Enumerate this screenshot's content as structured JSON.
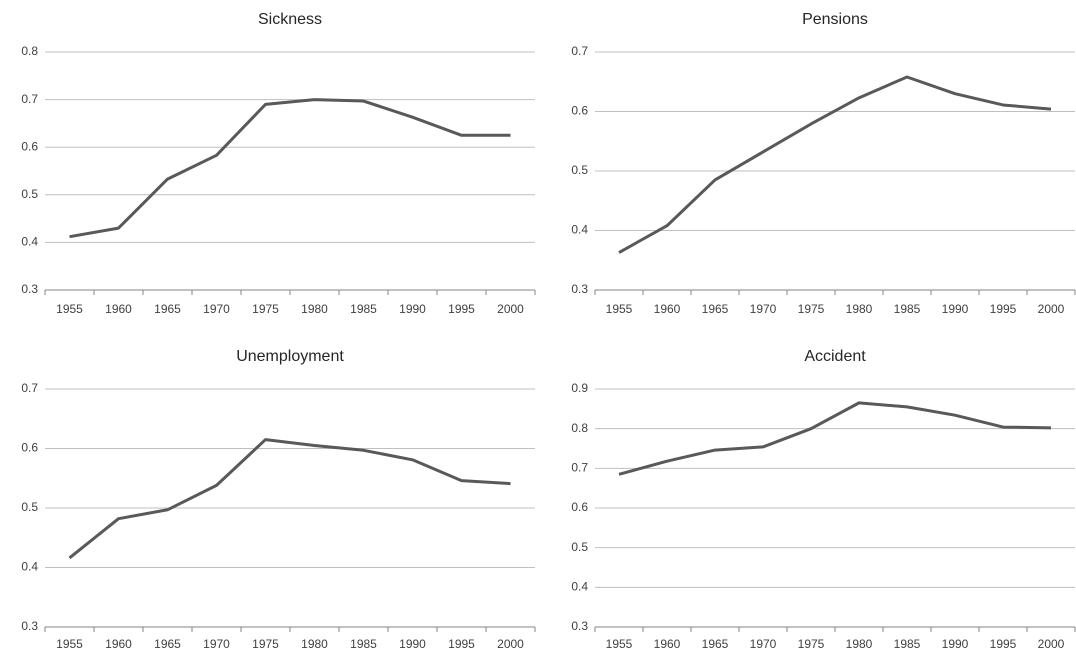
{
  "chart_data": [
    {
      "type": "line",
      "title": "Sickness",
      "categories": [
        "1955",
        "1960",
        "1965",
        "1970",
        "1975",
        "1980",
        "1985",
        "1990",
        "1995",
        "2000"
      ],
      "values": [
        0.412,
        0.43,
        0.533,
        0.583,
        0.69,
        0.7,
        0.697,
        0.663,
        0.625,
        0.625
      ],
      "color": "#595959",
      "ylim": [
        0.3,
        0.8
      ],
      "yticks": [
        0.3,
        0.4,
        0.5,
        0.6,
        0.7,
        0.8
      ],
      "grid": true
    },
    {
      "type": "line",
      "title": "Pensions",
      "categories": [
        "1955",
        "1960",
        "1965",
        "1970",
        "1975",
        "1980",
        "1985",
        "1990",
        "1995",
        "2000"
      ],
      "values": [
        0.363,
        0.408,
        0.485,
        0.532,
        0.579,
        0.623,
        0.658,
        0.63,
        0.611,
        0.604
      ],
      "color": "#595959",
      "ylim": [
        0.3,
        0.7
      ],
      "yticks": [
        0.3,
        0.4,
        0.5,
        0.6,
        0.7
      ],
      "grid": true
    },
    {
      "type": "line",
      "title": "Unemployment",
      "categories": [
        "1955",
        "1960",
        "1965",
        "1970",
        "1975",
        "1980",
        "1985",
        "1990",
        "1995",
        "2000"
      ],
      "values": [
        0.416,
        0.482,
        0.497,
        0.538,
        0.615,
        0.605,
        0.597,
        0.581,
        0.546,
        0.541
      ],
      "color": "#595959",
      "ylim": [
        0.3,
        0.7
      ],
      "yticks": [
        0.3,
        0.4,
        0.5,
        0.6,
        0.7
      ],
      "grid": true
    },
    {
      "type": "line",
      "title": "Accident",
      "categories": [
        "1955",
        "1960",
        "1965",
        "1970",
        "1975",
        "1980",
        "1985",
        "1990",
        "1995",
        "2000"
      ],
      "values": [
        0.685,
        0.718,
        0.746,
        0.754,
        0.8,
        0.865,
        0.855,
        0.834,
        0.804,
        0.802
      ],
      "color": "#595959",
      "ylim": [
        0.3,
        0.9
      ],
      "yticks": [
        0.3,
        0.4,
        0.5,
        0.6,
        0.7,
        0.8,
        0.9
      ],
      "grid": true
    }
  ]
}
